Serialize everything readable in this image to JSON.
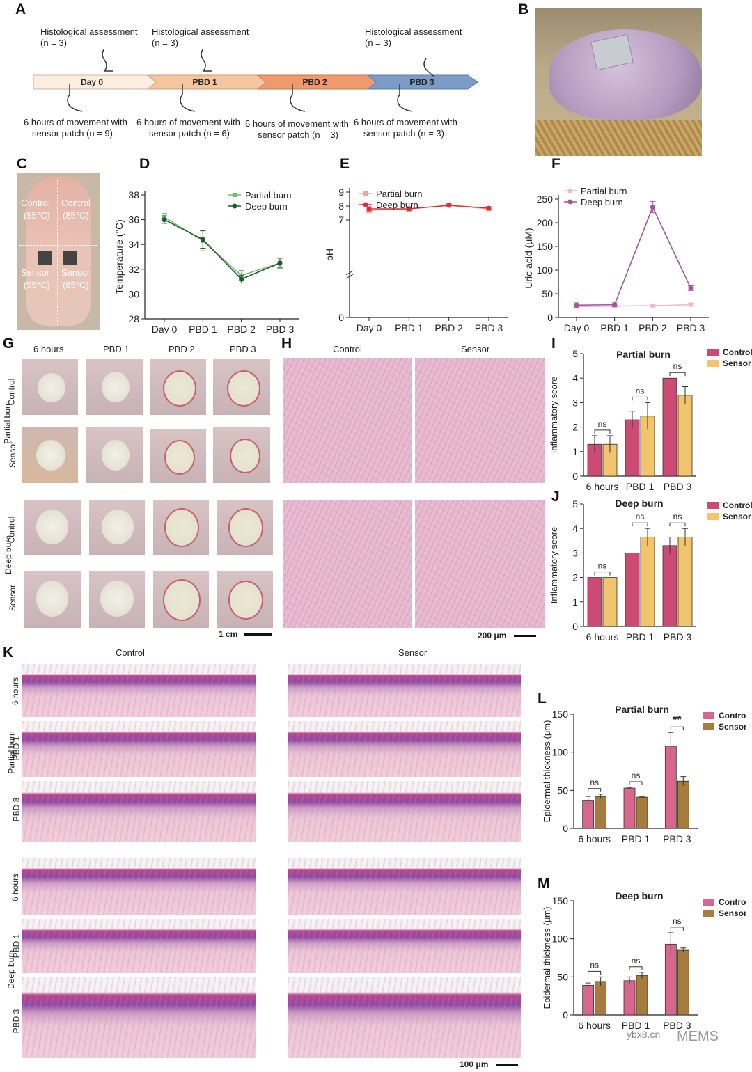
{
  "panels": {
    "A": "A",
    "B": "B",
    "C": "C",
    "D": "D",
    "E": "E",
    "F": "F",
    "G": "G",
    "H": "H",
    "I": "I",
    "J": "J",
    "K": "K",
    "L": "L",
    "M": "M"
  },
  "timeline": {
    "stages": [
      "Day 0",
      "PBD 1",
      "PBD 2",
      "PBD 3"
    ],
    "stage_colors": [
      "#fbeee0",
      "#f4c59e",
      "#ef9a6d",
      "#7a9cc7"
    ],
    "top_labels": [
      {
        "title": "Histological assessment",
        "n": "(n = 3)"
      },
      {
        "title": "Histological assessment",
        "n": "(n = 3)"
      },
      {
        "title": "Histological assessment",
        "n": "(n = 3)"
      }
    ],
    "bottom_labels": [
      {
        "line1": "6 hours of movement with",
        "line2": "sensor patch (n = 9)"
      },
      {
        "line1": "6 hours of movement with",
        "line2": "sensor patch (n = 6)"
      },
      {
        "line1": "6 hours of movement with",
        "line2": "sensor patch (n = 3)"
      },
      {
        "line1": "6 hours of movement with",
        "line2": "sensor patch (n = 3)"
      }
    ]
  },
  "panelC": {
    "labels": [
      "Control",
      "(55°C)",
      "Control",
      "(85°C)",
      "Sensor",
      "(55°C)",
      "Sensor",
      "(85°C)"
    ]
  },
  "panelG": {
    "cols": [
      "6 hours",
      "PBD 1",
      "PBD 2",
      "PBD 3"
    ],
    "group_partial": "Partial burn",
    "group_deep": "Deep burn",
    "row_control": "Control",
    "row_sensor": "Sensor",
    "scale": "1 cm"
  },
  "panelH": {
    "cols": [
      "Control",
      "Sensor"
    ],
    "scale": "200 μm"
  },
  "panelK": {
    "cols": [
      "Control",
      "Sensor"
    ],
    "rows": [
      "6 hours",
      "PBD 1",
      "PBD 3"
    ],
    "group_partial": "Partial burn",
    "group_deep": "Deep burn",
    "scale": "100 μm"
  },
  "watermark": {
    "site": "ybx8.cn",
    "name": "MEMS"
  },
  "chart_data": [
    {
      "id": "D",
      "type": "line",
      "categories": [
        "Day 0",
        "PBD 1",
        "PBD 2",
        "PBD 3"
      ],
      "ylabel": "Temperature (°C)",
      "ylim": [
        28,
        38
      ],
      "yticks": [
        28,
        30,
        32,
        34,
        36,
        38
      ],
      "legend": "top-right",
      "series": [
        {
          "name": "Partial burn",
          "values": [
            36.2,
            34.3,
            31.5,
            32.5
          ],
          "errors": [
            0.3,
            0.8,
            0.4,
            0.4
          ],
          "color": "#6fbf6a"
        },
        {
          "name": "Deep burn",
          "values": [
            36.0,
            34.4,
            31.2,
            32.5
          ],
          "errors": [
            0.3,
            0.7,
            0.3,
            0.4
          ],
          "color": "#1f5a2c"
        }
      ]
    },
    {
      "id": "E",
      "type": "line",
      "categories": [
        "Day 0",
        "PBD 1",
        "PBD 2",
        "PBD 3"
      ],
      "ylabel": "pH",
      "ylim": [
        0,
        9
      ],
      "yticks": [
        0,
        7,
        8,
        9
      ],
      "axis_break": true,
      "legend": "top-left",
      "series": [
        {
          "name": "Partial burn",
          "values": [
            7.7,
            7.8,
            8.05,
            7.8
          ],
          "errors": [
            0.2,
            0.15,
            0.1,
            0.15
          ],
          "color": "#f0a3a3"
        },
        {
          "name": "Deep burn",
          "values": [
            7.8,
            7.8,
            8.05,
            7.85
          ],
          "errors": [
            0.15,
            0.15,
            0.1,
            0.1
          ],
          "color": "#d93030"
        }
      ]
    },
    {
      "id": "F",
      "type": "line",
      "categories": [
        "Day 0",
        "PBD 1",
        "PBD 2",
        "PBD 3"
      ],
      "ylabel": "Uric acid (μM)",
      "ylim": [
        0,
        250
      ],
      "yticks": [
        0,
        50,
        100,
        150,
        200,
        250
      ],
      "legend": "top-left",
      "series": [
        {
          "name": "Partial burn",
          "values": [
            23,
            24,
            25,
            27
          ],
          "errors": [
            3,
            2,
            2,
            3
          ],
          "color": "#f2b8cf"
        },
        {
          "name": "Deep burn",
          "values": [
            26,
            27,
            233,
            62
          ],
          "errors": [
            5,
            4,
            12,
            5
          ],
          "color": "#a3549e"
        }
      ]
    },
    {
      "id": "I",
      "type": "bar",
      "title": "Partial burn",
      "categories": [
        "6 hours",
        "PBD 1",
        "PBD 3"
      ],
      "ylabel": "Inflammatory score",
      "ylim": [
        0,
        5
      ],
      "yticks": [
        0,
        1,
        2,
        3,
        4,
        5
      ],
      "legend": "top-right",
      "series": [
        {
          "name": "Control",
          "values": [
            1.3,
            2.3,
            4.0
          ],
          "errors": [
            0.35,
            0.35,
            0
          ],
          "color": "#cc4b74"
        },
        {
          "name": "Sensor",
          "values": [
            1.3,
            2.45,
            3.3
          ],
          "errors": [
            0.35,
            0.55,
            0.35
          ],
          "color": "#f2c46b"
        }
      ],
      "annotations": [
        "ns",
        "ns",
        "ns"
      ]
    },
    {
      "id": "J",
      "type": "bar",
      "title": "Deep burn",
      "categories": [
        "6 hours",
        "PBD 1",
        "PBD 3"
      ],
      "ylabel": "Inflammatory score",
      "ylim": [
        0,
        5
      ],
      "yticks": [
        0,
        1,
        2,
        3,
        4,
        5
      ],
      "legend": "top-right",
      "series": [
        {
          "name": "Control",
          "values": [
            2.0,
            3.0,
            3.3
          ],
          "errors": [
            0,
            0,
            0.35
          ],
          "color": "#cc4b74"
        },
        {
          "name": "Sensor",
          "values": [
            2.0,
            3.65,
            3.65
          ],
          "errors": [
            0,
            0.35,
            0.35
          ],
          "color": "#f2c46b"
        }
      ],
      "annotations": [
        "ns",
        "ns",
        "ns"
      ]
    },
    {
      "id": "L",
      "type": "bar",
      "title": "Partial burn",
      "categories": [
        "6 hours",
        "PBD 1",
        "PBD 3"
      ],
      "ylabel": "Epidermal thickness (μm)",
      "ylim": [
        0,
        150
      ],
      "yticks": [
        0,
        50,
        100,
        150
      ],
      "legend": "top-right",
      "series": [
        {
          "name": "Control",
          "values": [
            37,
            53,
            108
          ],
          "errors": [
            5,
            1,
            18
          ],
          "color": "#d9668d"
        },
        {
          "name": "Sensor",
          "values": [
            42,
            41,
            62
          ],
          "errors": [
            3,
            1,
            6
          ],
          "color": "#a67c3c"
        }
      ],
      "annotations": [
        "ns",
        "ns",
        "**"
      ]
    },
    {
      "id": "M",
      "type": "bar",
      "title": "Deep burn",
      "categories": [
        "6 hours",
        "PBD 1",
        "PBD 3"
      ],
      "ylabel": "Epidermal thickness (μm)",
      "ylim": [
        0,
        150
      ],
      "yticks": [
        0,
        50,
        100,
        150
      ],
      "legend": "top-right",
      "series": [
        {
          "name": "Control",
          "values": [
            39,
            45,
            93
          ],
          "errors": [
            3,
            5,
            15
          ],
          "color": "#d9668d"
        },
        {
          "name": "Sensor",
          "values": [
            44,
            52,
            85
          ],
          "errors": [
            6,
            4,
            3
          ],
          "color": "#a67c3c"
        }
      ],
      "annotations": [
        "ns",
        "ns",
        "ns"
      ]
    }
  ]
}
